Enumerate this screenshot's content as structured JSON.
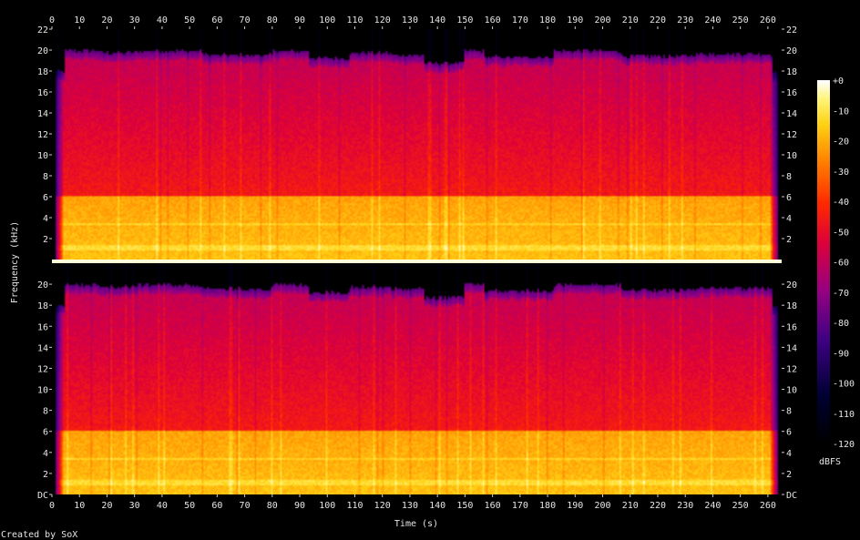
{
  "chart_data": {
    "type": "heatmap",
    "subtype": "spectrogram",
    "title": "",
    "xlabel": "Time (s)",
    "ylabel": "Frequency (kHz)",
    "xlim": [
      0,
      265
    ],
    "ylim": [
      0,
      22
    ],
    "x_ticks": [
      "0",
      "10",
      "20",
      "30",
      "40",
      "50",
      "60",
      "70",
      "80",
      "90",
      "100",
      "110",
      "120",
      "130",
      "140",
      "150",
      "160",
      "170",
      "180",
      "190",
      "200",
      "210",
      "220",
      "230",
      "240",
      "250",
      "260"
    ],
    "y_ticks_top": [
      "2",
      "4",
      "6",
      "8",
      "10",
      "12",
      "14",
      "16",
      "18",
      "20",
      "22"
    ],
    "y_ticks_bottom": [
      "DC",
      "2",
      "4",
      "6",
      "8",
      "10",
      "12",
      "14",
      "16",
      "18",
      "20"
    ],
    "colorbar": {
      "label": "dBFS",
      "ticks": [
        "+0",
        "-10",
        "-20",
        "-30",
        "-40",
        "-50",
        "-60",
        "-70",
        "-80",
        "-90",
        "-100",
        "-110",
        "-120"
      ],
      "range": [
        -120,
        0
      ]
    },
    "channels": [
      {
        "name": "",
        "cutoff_khz": 20,
        "bright_band_khz": 6
      },
      {
        "name": "",
        "cutoff_khz": 20,
        "bright_band_khz": 6
      }
    ],
    "section_boundaries_s": [
      0,
      4,
      17,
      30,
      55,
      80,
      93,
      108,
      123,
      135,
      150,
      157,
      182,
      207,
      233,
      262,
      265
    ],
    "section_cutoff_khz": [
      18,
      20,
      19.8,
      20,
      19.6,
      20,
      19.3,
      19.8,
      19.6,
      18.8,
      20,
      19.4,
      20,
      19.5,
      19.7,
      18
    ]
  },
  "footer": {
    "credit": "Created by SoX"
  }
}
